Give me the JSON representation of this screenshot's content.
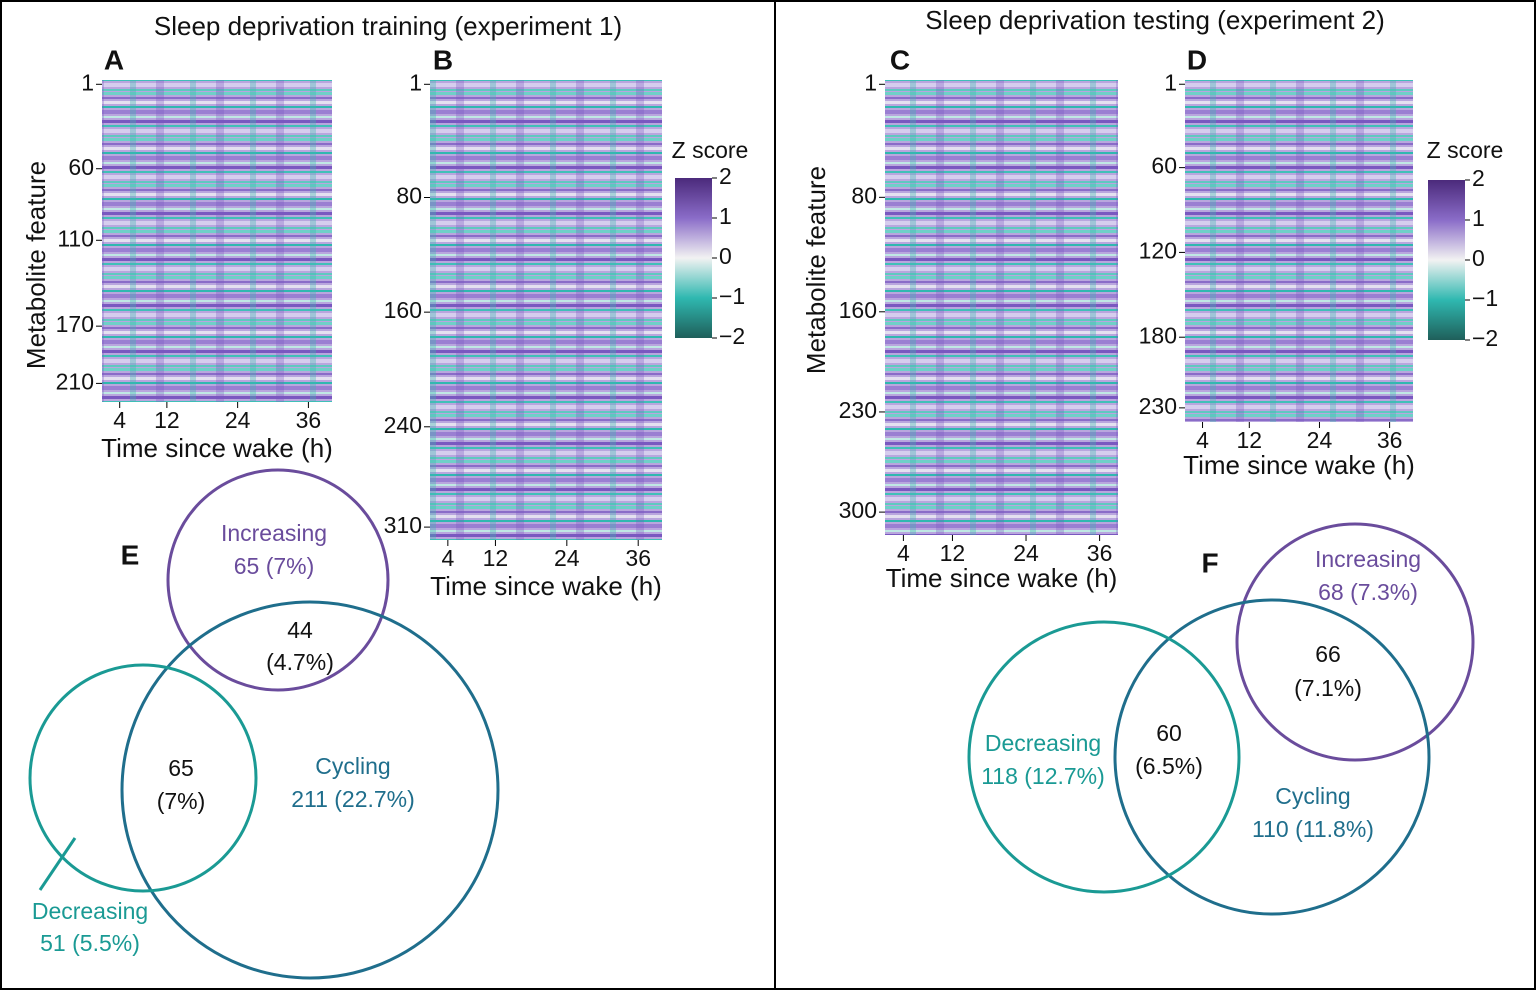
{
  "header": {
    "left_title": "Sleep deprivation training (experiment 1)",
    "right_title": "Sleep deprivation testing (experiment 2)"
  },
  "chart_data": [
    {
      "type": "heatmap",
      "panel": "A",
      "ylabel": "Metabolite feature",
      "xlabel": "Time since wake (h)",
      "ylim": [
        -2,
        223
      ],
      "yticks": [
        1,
        60,
        110,
        170,
        210
      ],
      "xlim": [
        1,
        40
      ],
      "xticks": [
        4,
        12,
        24,
        36
      ]
    },
    {
      "type": "heatmap",
      "panel": "B",
      "xlabel": "Time since wake (h)",
      "ylim": [
        -2,
        319
      ],
      "yticks": [
        1,
        80,
        160,
        240,
        310
      ],
      "xlim": [
        1,
        40
      ],
      "xticks": [
        4,
        12,
        24,
        36
      ],
      "colorbar": {
        "title": "Z score",
        "clim": [
          -2,
          2
        ],
        "ticks": [
          2,
          1,
          0,
          {
            "value": -1,
            "label": "−1"
          },
          {
            "value": -2,
            "label": "−2"
          }
        ]
      }
    },
    {
      "type": "heatmap",
      "panel": "C",
      "ylabel": "Metabolite feature",
      "xlabel": "Time since wake (h)",
      "ylim": [
        -2,
        316
      ],
      "yticks": [
        1,
        80,
        160,
        230,
        300
      ],
      "xlim": [
        1,
        39
      ],
      "xticks": [
        4,
        12,
        24,
        36
      ]
    },
    {
      "type": "heatmap",
      "panel": "D",
      "xlabel": "Time since wake (h)",
      "ylim": [
        -2,
        240
      ],
      "yticks": [
        1,
        60,
        120,
        180,
        230
      ],
      "xlim": [
        1,
        40
      ],
      "xticks": [
        4,
        12,
        24,
        36
      ],
      "colorbar": {
        "title": "Z score",
        "clim": [
          -2,
          2
        ],
        "ticks": [
          2,
          1,
          0,
          {
            "value": -1,
            "label": "−1"
          },
          {
            "value": -2,
            "label": "−2"
          }
        ]
      }
    },
    {
      "type": "venn",
      "panel": "E",
      "sets": [
        {
          "name": "Increasing",
          "label": "65 (7%)",
          "color": "#6a4c9c"
        },
        {
          "name": "Cycling",
          "label": "211 (22.7%)",
          "color": "#1f6e8c"
        },
        {
          "name": "Decreasing",
          "label": "51 (5.5%)",
          "color": "#1a9a94"
        }
      ],
      "overlaps": [
        {
          "count": "44",
          "percent": "(4.7%)"
        },
        {
          "count": "65",
          "percent": "(7%)"
        }
      ]
    },
    {
      "type": "venn",
      "panel": "F",
      "sets": [
        {
          "name": "Increasing",
          "label": "68 (7.3%)",
          "color": "#6a4c9c"
        },
        {
          "name": "Cycling",
          "label": "110 (11.8%)",
          "color": "#1f6e8c"
        },
        {
          "name": "Decreasing",
          "label": "118 (12.7%)",
          "color": "#1a9a94"
        }
      ],
      "overlaps": [
        {
          "count": "66",
          "percent": "(7.1%)"
        },
        {
          "count": "60",
          "percent": "(6.5%)"
        }
      ]
    }
  ]
}
